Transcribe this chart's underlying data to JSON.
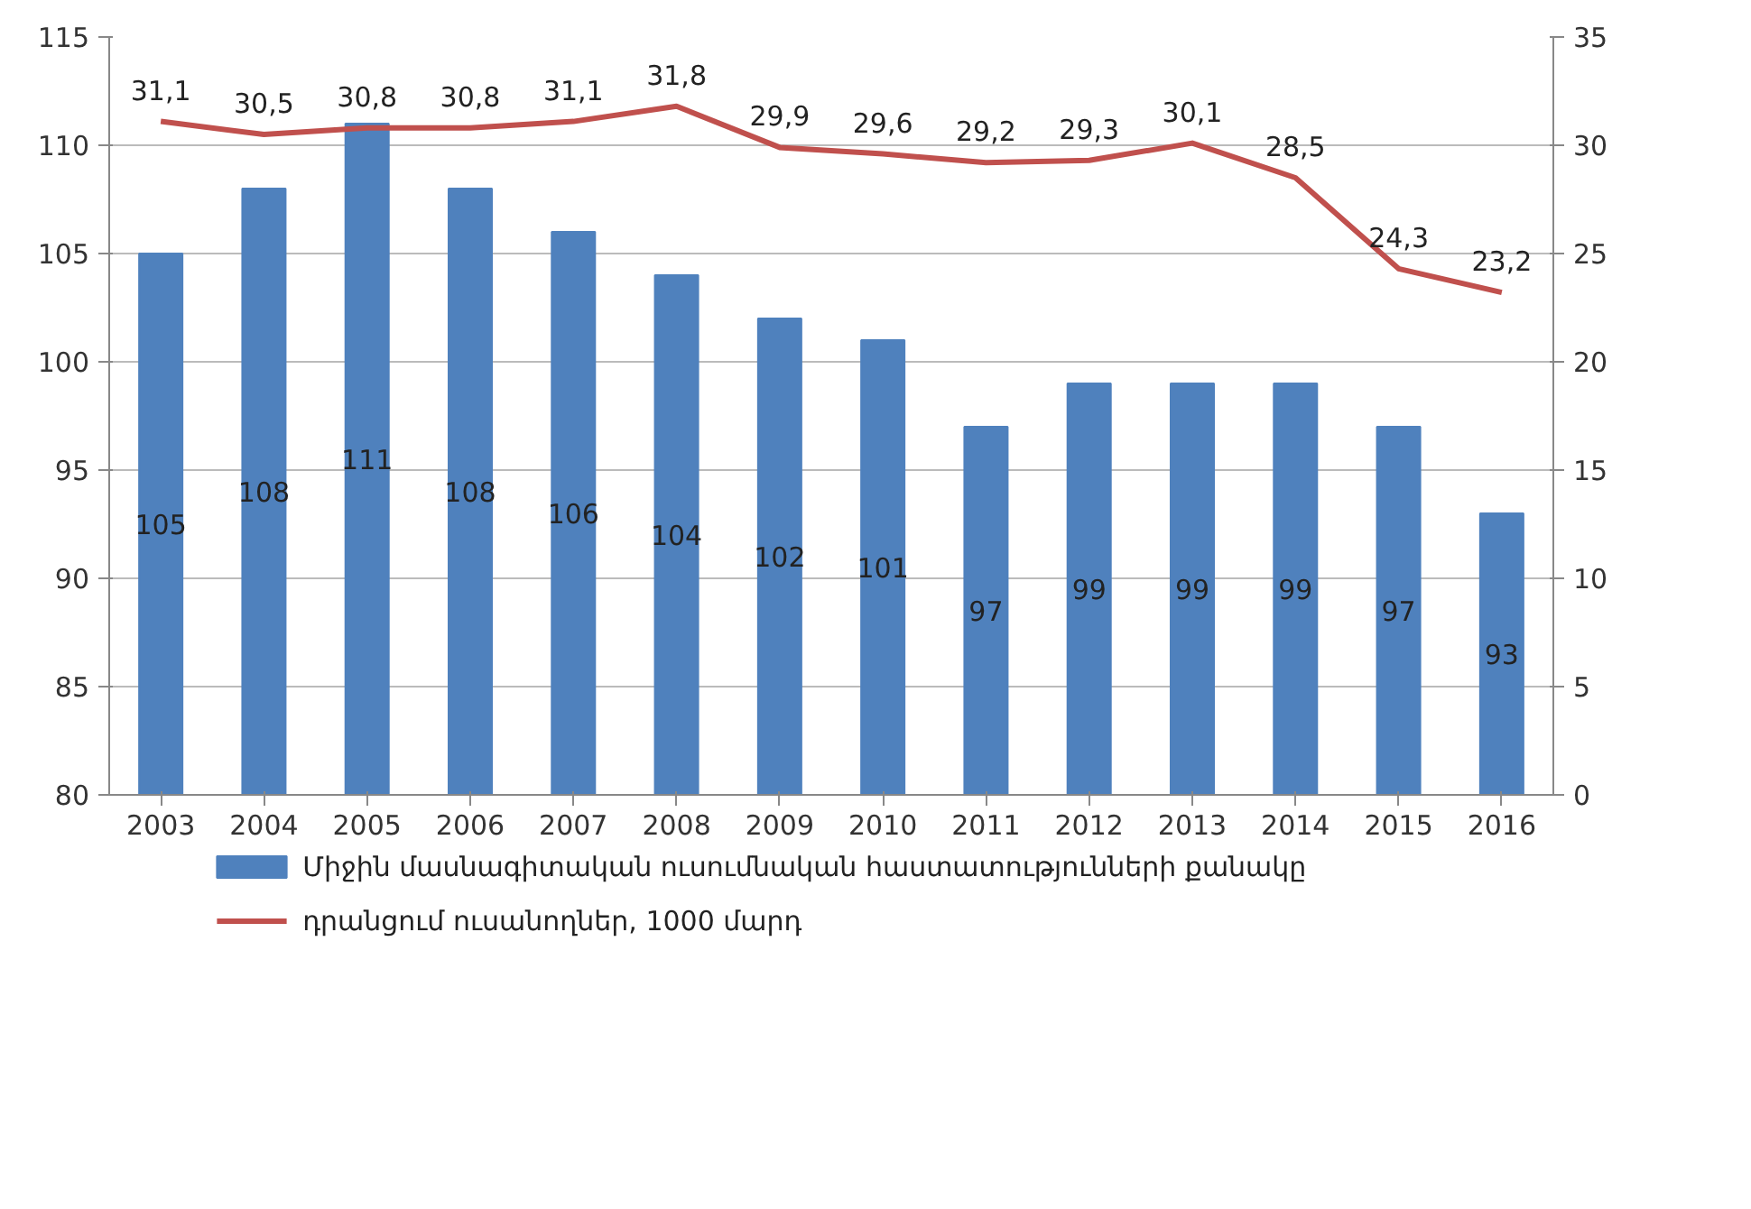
{
  "chart_data": {
    "type": "bar",
    "categories": [
      "2003",
      "2004",
      "2005",
      "2006",
      "2007",
      "2008",
      "2009",
      "2010",
      "2011",
      "2012",
      "2013",
      "2014",
      "2015",
      "2016"
    ],
    "series": [
      {
        "name": "Միջին մասնագիտական ուսումնական հաստատությունների քանակը",
        "color": "#4f81bd",
        "values": [
          105,
          108,
          111,
          108,
          106,
          104,
          102,
          101,
          97,
          99,
          99,
          99,
          97,
          93
        ],
        "value_labels": [
          "105",
          "108",
          "111",
          "108",
          "106",
          "104",
          "102",
          "101",
          "97",
          "99",
          "99",
          "99",
          "97",
          "93"
        ]
      },
      {
        "name": "դրանցում ուսանողներ, 1000 մարդ",
        "type": "line",
        "axis": "y2",
        "color": "#c0504d",
        "values": [
          31.1,
          30.5,
          30.8,
          30.8,
          31.1,
          31.8,
          29.9,
          29.6,
          29.2,
          29.3,
          30.1,
          28.5,
          24.3,
          23.2
        ],
        "value_labels": [
          "31,1",
          "30,5",
          "30,8",
          "30,8",
          "31,1",
          "31,8",
          "29,9",
          "29,6",
          "29,2",
          "29,3",
          "30,1",
          "28,5",
          "24,3",
          "23,2"
        ]
      }
    ],
    "ylim": [
      80,
      115
    ],
    "yticks": [
      80,
      85,
      90,
      95,
      100,
      105,
      110,
      115
    ],
    "y2lim": [
      0,
      35
    ],
    "y2ticks": [
      0,
      5,
      10,
      15,
      20,
      25,
      30,
      35
    ],
    "grid": "y",
    "legend": "bottom",
    "marker": "none",
    "line_style": "solid"
  }
}
